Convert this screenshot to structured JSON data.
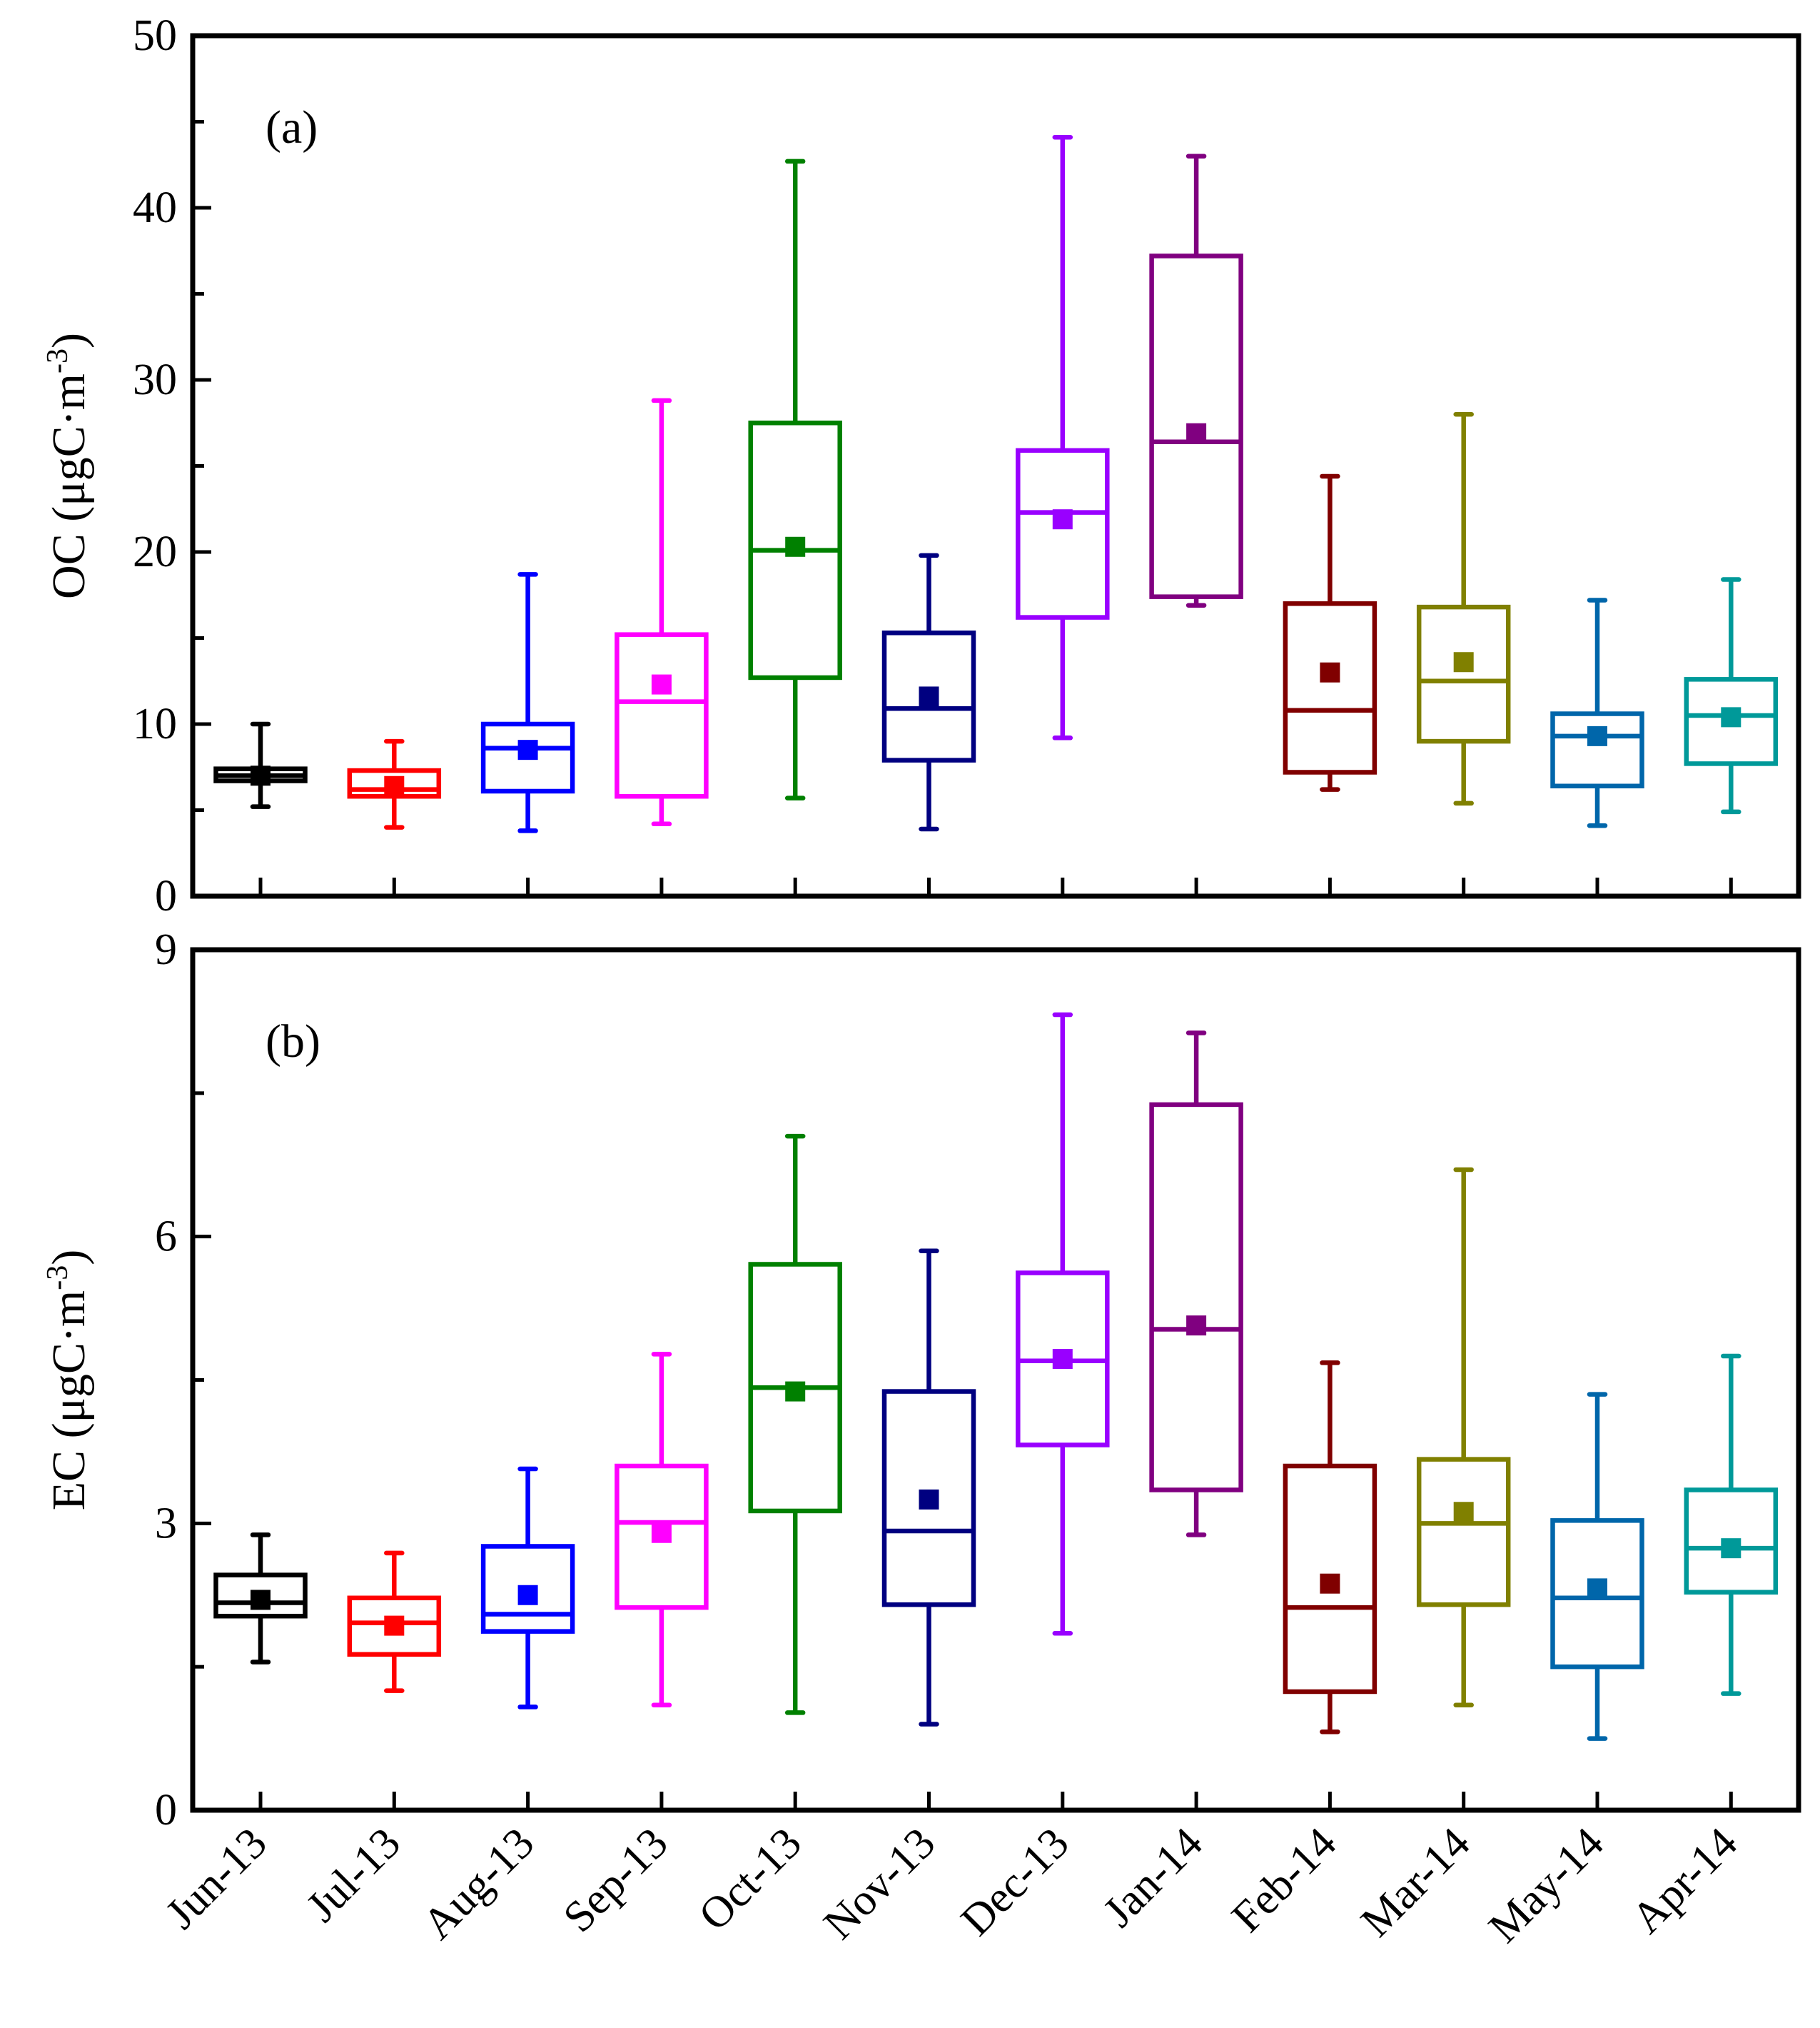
{
  "chart_data": [
    {
      "type": "box",
      "panel_label": "(a)",
      "ylabel_main": "OC",
      "ylabel_unit": "(μgC·m",
      "ylabel_sup": "-3",
      "ylabel_close": ")",
      "ylim": [
        0,
        50
      ],
      "yticks": [
        "0",
        "10",
        "20",
        "30",
        "40",
        "50"
      ],
      "ytick_values": [
        0,
        10,
        20,
        30,
        40,
        50
      ],
      "categories": [
        "Jun-13",
        "Jul-13",
        "Aug-13",
        "Sep-13",
        "Oct-13",
        "Nov-13",
        "Dec-13",
        "Jan-14",
        "Feb-14",
        "Mar-14",
        "May-14",
        "Apr-14"
      ],
      "colors": [
        "#000000",
        "#ff0000",
        "#0000ff",
        "#ff00ff",
        "#008000",
        "#000080",
        "#9900ff",
        "#800080",
        "#800000",
        "#808000",
        "#0066aa",
        "#009999"
      ],
      "boxes": [
        {
          "min": 5.2,
          "q1": 6.7,
          "median": 7.0,
          "q3": 7.4,
          "max": 10.0,
          "mean": 7.0
        },
        {
          "min": 4.0,
          "q1": 5.8,
          "median": 6.2,
          "q3": 7.3,
          "max": 9.0,
          "mean": 6.4
        },
        {
          "min": 3.8,
          "q1": 6.1,
          "median": 8.6,
          "q3": 10.0,
          "max": 18.7,
          "mean": 8.5
        },
        {
          "min": 4.2,
          "q1": 5.8,
          "median": 11.3,
          "q3": 15.2,
          "max": 28.8,
          "mean": 12.3
        },
        {
          "min": 5.7,
          "q1": 12.7,
          "median": 20.1,
          "q3": 27.5,
          "max": 42.7,
          "mean": 20.3
        },
        {
          "min": 3.9,
          "q1": 7.9,
          "median": 10.9,
          "q3": 15.3,
          "max": 19.8,
          "mean": 11.6
        },
        {
          "min": 9.2,
          "q1": 16.2,
          "median": 22.3,
          "q3": 25.9,
          "max": 44.1,
          "mean": 21.9
        },
        {
          "min": 16.9,
          "q1": 17.4,
          "median": 26.4,
          "q3": 37.2,
          "max": 43.0,
          "mean": 26.9
        },
        {
          "min": 6.2,
          "q1": 7.2,
          "median": 10.8,
          "q3": 17.0,
          "max": 24.4,
          "mean": 13.0
        },
        {
          "min": 5.4,
          "q1": 9.0,
          "median": 12.5,
          "q3": 16.8,
          "max": 28.0,
          "mean": 13.6
        },
        {
          "min": 4.1,
          "q1": 6.4,
          "median": 9.3,
          "q3": 10.6,
          "max": 17.2,
          "mean": 9.3
        },
        {
          "min": 4.9,
          "q1": 7.7,
          "median": 10.5,
          "q3": 12.6,
          "max": 18.4,
          "mean": 10.4
        }
      ]
    },
    {
      "type": "box",
      "panel_label": "(b)",
      "ylabel_main": "EC",
      "ylabel_unit": "(μgC·m",
      "ylabel_sup": "-3",
      "ylabel_close": ")",
      "ylim": [
        0,
        9
      ],
      "yticks": [
        "0",
        "3",
        "6",
        "9"
      ],
      "ytick_values": [
        0,
        3,
        6,
        9
      ],
      "categories": [
        "Jun-13",
        "Jul-13",
        "Aug-13",
        "Sep-13",
        "Oct-13",
        "Nov-13",
        "Dec-13",
        "Jan-14",
        "Feb-14",
        "Mar-14",
        "May-14",
        "Apr-14"
      ],
      "colors": [
        "#000000",
        "#ff0000",
        "#0000ff",
        "#ff00ff",
        "#008000",
        "#000080",
        "#9900ff",
        "#800080",
        "#800000",
        "#808000",
        "#0066aa",
        "#009999"
      ],
      "boxes": [
        {
          "min": 1.55,
          "q1": 2.03,
          "median": 2.17,
          "q3": 2.46,
          "max": 2.88,
          "mean": 2.2
        },
        {
          "min": 1.25,
          "q1": 1.63,
          "median": 1.96,
          "q3": 2.22,
          "max": 2.69,
          "mean": 1.93
        },
        {
          "min": 1.08,
          "q1": 1.87,
          "median": 2.05,
          "q3": 2.76,
          "max": 3.57,
          "mean": 2.25
        },
        {
          "min": 1.1,
          "q1": 2.12,
          "median": 3.01,
          "q3": 3.6,
          "max": 4.77,
          "mean": 2.9
        },
        {
          "min": 1.02,
          "q1": 3.13,
          "median": 4.42,
          "q3": 5.71,
          "max": 7.05,
          "mean": 4.38
        },
        {
          "min": 0.9,
          "q1": 2.15,
          "median": 2.92,
          "q3": 4.38,
          "max": 5.85,
          "mean": 3.25
        },
        {
          "min": 1.85,
          "q1": 3.82,
          "median": 4.7,
          "q3": 5.62,
          "max": 8.32,
          "mean": 4.72
        },
        {
          "min": 2.88,
          "q1": 3.35,
          "median": 5.03,
          "q3": 7.38,
          "max": 8.13,
          "mean": 5.07
        },
        {
          "min": 0.82,
          "q1": 1.24,
          "median": 2.12,
          "q3": 3.6,
          "max": 4.68,
          "mean": 2.37
        },
        {
          "min": 1.1,
          "q1": 2.15,
          "median": 3.0,
          "q3": 3.67,
          "max": 6.7,
          "mean": 3.12
        },
        {
          "min": 0.75,
          "q1": 1.5,
          "median": 2.22,
          "q3": 3.03,
          "max": 4.35,
          "mean": 2.32
        },
        {
          "min": 1.22,
          "q1": 2.28,
          "median": 2.74,
          "q3": 3.35,
          "max": 4.75,
          "mean": 2.74
        }
      ]
    }
  ]
}
